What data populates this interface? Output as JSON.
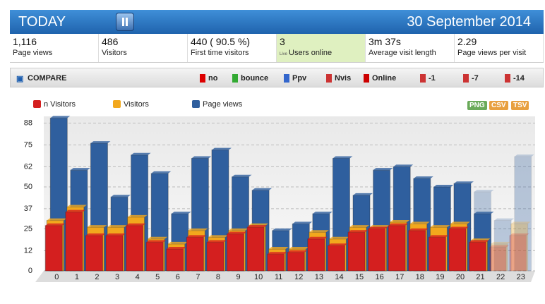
{
  "header": {
    "title": "TODAY",
    "date": "30 September 2014"
  },
  "stats": [
    {
      "value": "1,116",
      "label": "Page views"
    },
    {
      "value": "486",
      "label": "Visitors"
    },
    {
      "value": "440 ( 90.5 %)",
      "label": "First time visitors"
    },
    {
      "value": "3",
      "badge": "Live",
      "label": "Users online"
    },
    {
      "value": "3m 37s",
      "label": "Average visit length"
    },
    {
      "value": "2.29",
      "label": "Page views per visit"
    }
  ],
  "toolbar": {
    "compare": "COMPARE",
    "buttons": [
      "no",
      "bounce",
      "Ppv",
      "Nvis",
      "Online",
      "-1",
      "-7",
      "-14"
    ]
  },
  "exports": [
    "PNG",
    "CSV",
    "TSV"
  ],
  "chart_data": {
    "type": "bar",
    "categories": [
      "0",
      "1",
      "2",
      "3",
      "4",
      "5",
      "6",
      "7",
      "8",
      "9",
      "10",
      "11",
      "12",
      "13",
      "14",
      "15",
      "16",
      "17",
      "18",
      "19",
      "20",
      "21",
      "22",
      "23"
    ],
    "series": [
      {
        "name": "Page views",
        "color": "#2f5f9e",
        "values": [
          91,
          60,
          76,
          44,
          69,
          58,
          34,
          67,
          72,
          56,
          48,
          24,
          28,
          34,
          67,
          45,
          60,
          62,
          55,
          50,
          52,
          34,
          null,
          null
        ],
        "projected_values": [
          null,
          null,
          null,
          null,
          null,
          null,
          null,
          null,
          null,
          null,
          null,
          null,
          null,
          null,
          null,
          null,
          null,
          null,
          null,
          null,
          null,
          47,
          30,
          68
        ]
      },
      {
        "name": "Visitors",
        "color": "#f2a81d",
        "values": [
          30,
          38,
          26,
          26,
          32,
          19,
          16,
          24,
          20,
          24,
          27,
          13,
          13,
          23,
          19,
          26,
          26,
          29,
          28,
          26,
          28,
          18,
          null,
          null
        ],
        "projected_values": [
          null,
          null,
          null,
          null,
          null,
          null,
          null,
          null,
          null,
          null,
          null,
          null,
          null,
          null,
          null,
          null,
          null,
          null,
          null,
          null,
          null,
          null,
          16,
          28
        ]
      },
      {
        "name": "n Visitors",
        "color": "#d41f1f",
        "values": [
          27,
          35,
          21,
          21,
          27,
          17,
          13,
          20,
          17,
          22,
          26,
          10,
          11,
          19,
          15,
          23,
          25,
          27,
          24,
          20,
          25,
          17,
          null,
          null
        ],
        "projected_values": [
          null,
          null,
          null,
          null,
          null,
          null,
          null,
          null,
          null,
          null,
          null,
          null,
          null,
          null,
          null,
          null,
          null,
          null,
          null,
          null,
          null,
          null,
          14,
          21
        ]
      }
    ],
    "ylim": [
      0,
      92
    ],
    "yticks": [
      0,
      12,
      25,
      37,
      50,
      62,
      75,
      88
    ],
    "grid": true
  }
}
